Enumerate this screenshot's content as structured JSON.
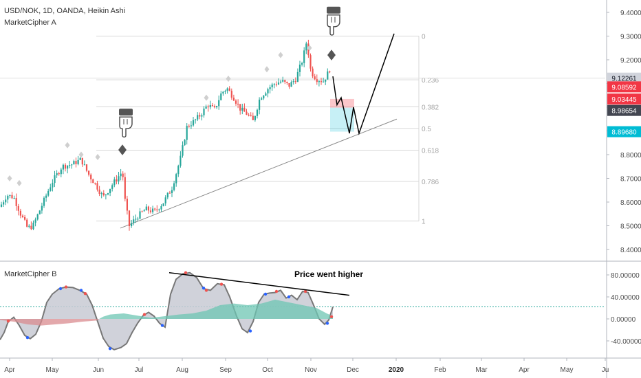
{
  "header": {
    "symbol_line": "USD/NOK, 1D, OANDA, Heikin Ashi",
    "indicator_a": "MarketCipher A",
    "indicator_b": "MarketCipher B"
  },
  "annotation": {
    "text": "Price went higher"
  },
  "colors": {
    "up": "#26a69a",
    "down": "#ef5350",
    "diamond": "#555555",
    "tag_gray": "#d1d4dc",
    "tag_red": "#f23645",
    "tag_dark": "#434651",
    "tag_teal": "#00bcd4",
    "fib_line": "#d7d7d7",
    "trend_line": "#888888",
    "projection": "#000000",
    "wave_gray": "#c8cad3",
    "wave_edge": "#777777",
    "teal_fill": "#6ec5b3",
    "red_fill": "#d98b8f"
  },
  "chart_data": [
    {
      "type": "candlestick",
      "title": "USD/NOK, 1D, OANDA, Heikin Ashi",
      "ylim": [
        8.35,
        9.45
      ],
      "y_ticks": [
        "9.40000",
        "9.30000",
        "9.20000",
        "9.10000",
        "9.00000",
        "8.90000",
        "8.80000",
        "8.70000",
        "8.60000",
        "8.50000",
        "8.40000"
      ],
      "x_ticks": [
        "Apr",
        "May",
        "Jun",
        "Jul",
        "Aug",
        "Sep",
        "Oct",
        "Nov",
        "Dec",
        "2020",
        "Feb",
        "Mar",
        "Apr",
        "May",
        "Ju"
      ],
      "price_path": [
        [
          0,
          8.58
        ],
        [
          10,
          8.63
        ],
        [
          20,
          8.62
        ],
        [
          30,
          8.55
        ],
        [
          40,
          8.49
        ],
        [
          48,
          8.5
        ],
        [
          60,
          8.58
        ],
        [
          75,
          8.68
        ],
        [
          90,
          8.75
        ],
        [
          105,
          8.76
        ],
        [
          118,
          8.78
        ],
        [
          128,
          8.72
        ],
        [
          140,
          8.67
        ],
        [
          150,
          8.62
        ],
        [
          160,
          8.66
        ],
        [
          170,
          8.7
        ],
        [
          178,
          8.73
        ],
        [
          182,
          8.6
        ],
        [
          188,
          8.5
        ],
        [
          200,
          8.54
        ],
        [
          212,
          8.57
        ],
        [
          225,
          8.56
        ],
        [
          238,
          8.6
        ],
        [
          250,
          8.66
        ],
        [
          262,
          8.78
        ],
        [
          272,
          8.92
        ],
        [
          282,
          8.94
        ],
        [
          292,
          8.97
        ],
        [
          302,
          9.01
        ],
        [
          312,
          8.99
        ],
        [
          322,
          9.06
        ],
        [
          330,
          9.08
        ],
        [
          340,
          9.04
        ],
        [
          350,
          8.99
        ],
        [
          360,
          8.97
        ],
        [
          368,
          8.94
        ],
        [
          378,
          9.04
        ],
        [
          390,
          9.08
        ],
        [
          400,
          9.1
        ],
        [
          410,
          9.11
        ],
        [
          420,
          9.09
        ],
        [
          430,
          9.12
        ],
        [
          440,
          9.2
        ],
        [
          446,
          9.28
        ],
        [
          452,
          9.15
        ],
        [
          460,
          9.12
        ],
        [
          470,
          9.11
        ],
        [
          478,
          9.15
        ],
        [
          484,
          9.2
        ]
      ],
      "diamonds": [
        {
          "x": 178,
          "price": 8.82,
          "large": true
        },
        {
          "x": 482,
          "price": 9.22,
          "large": true
        },
        {
          "x": 98,
          "price": 8.84
        },
        {
          "x": 118,
          "price": 8.8
        },
        {
          "x": 142,
          "price": 8.79
        },
        {
          "x": 28,
          "price": 8.68
        },
        {
          "x": 14,
          "price": 8.7
        },
        {
          "x": 300,
          "price": 9.04
        },
        {
          "x": 332,
          "price": 9.12
        },
        {
          "x": 388,
          "price": 9.16
        },
        {
          "x": 408,
          "price": 9.22
        },
        {
          "x": 450,
          "price": 9.25
        }
      ],
      "pointer_icons": [
        {
          "x": 182,
          "price": 8.93
        },
        {
          "x": 484,
          "price": 9.36
        }
      ],
      "fib_levels": [
        {
          "label": "0",
          "price": 9.3
        },
        {
          "label": "0.236",
          "price": 9.1156
        },
        {
          "label": "0.382",
          "price": 9.0017
        },
        {
          "label": "0.5",
          "price": 8.91
        },
        {
          "label": "0.618",
          "price": 8.8183
        },
        {
          "label": "0.786",
          "price": 8.6873
        },
        {
          "label": "1",
          "price": 8.52
        }
      ],
      "trend_line": [
        [
          175,
          8.49
        ],
        [
          577,
          8.95
        ]
      ],
      "projection": [
        [
          484,
          9.13
        ],
        [
          490,
          9.01
        ],
        [
          496,
          9.04
        ],
        [
          508,
          8.89
        ],
        [
          514,
          9.0
        ],
        [
          522,
          8.89
        ],
        [
          573,
          9.31
        ]
      ],
      "zones": [
        {
          "kind": "stop",
          "x0": 480,
          "x1": 515,
          "top": 9.035,
          "bottom": 8.998
        },
        {
          "kind": "target",
          "x0": 480,
          "x1": 515,
          "top": 8.998,
          "bottom": 8.897
        }
      ],
      "price_tags": [
        {
          "value": "9.12261",
          "price": 9.1226,
          "color": "tag_gray"
        },
        {
          "value": "9.08592",
          "price": 9.0859,
          "color": "tag_red"
        },
        {
          "value": "9.03445",
          "price": 9.0345,
          "color": "tag_red"
        },
        {
          "value": "8.98654",
          "price": 8.9865,
          "color": "tag_dark"
        },
        {
          "value": "8.89680",
          "price": 8.8968,
          "color": "tag_teal"
        }
      ]
    },
    {
      "type": "area",
      "title": "MarketCipher B",
      "ylim": [
        -70,
        92
      ],
      "y_ticks": [
        "80.00000",
        "40.00000",
        "0.00000",
        "-40.00000"
      ],
      "dotted_level": 22,
      "wave": [
        [
          0,
          -38
        ],
        [
          6,
          -25
        ],
        [
          12,
          -5
        ],
        [
          20,
          3
        ],
        [
          28,
          -12
        ],
        [
          36,
          -30
        ],
        [
          44,
          -36
        ],
        [
          52,
          -28
        ],
        [
          60,
          -5
        ],
        [
          68,
          30
        ],
        [
          76,
          45
        ],
        [
          86,
          55
        ],
        [
          96,
          58
        ],
        [
          106,
          57
        ],
        [
          116,
          52
        ],
        [
          126,
          45
        ],
        [
          134,
          25
        ],
        [
          142,
          -5
        ],
        [
          150,
          -35
        ],
        [
          158,
          -50
        ],
        [
          166,
          -56
        ],
        [
          176,
          -52
        ],
        [
          184,
          -45
        ],
        [
          192,
          -25
        ],
        [
          200,
          -8
        ],
        [
          208,
          6
        ],
        [
          216,
          12
        ],
        [
          224,
          5
        ],
        [
          232,
          -8
        ],
        [
          240,
          -15
        ],
        [
          248,
          45
        ],
        [
          256,
          72
        ],
        [
          266,
          82
        ],
        [
          276,
          84
        ],
        [
          286,
          75
        ],
        [
          296,
          55
        ],
        [
          306,
          52
        ],
        [
          316,
          64
        ],
        [
          326,
          62
        ],
        [
          334,
          40
        ],
        [
          344,
          5
        ],
        [
          352,
          -18
        ],
        [
          360,
          -25
        ],
        [
          368,
          -5
        ],
        [
          376,
          30
        ],
        [
          384,
          45
        ],
        [
          392,
          47
        ],
        [
          400,
          48
        ],
        [
          408,
          52
        ],
        [
          416,
          38
        ],
        [
          424,
          43
        ],
        [
          432,
          35
        ],
        [
          440,
          50
        ],
        [
          448,
          48
        ],
        [
          456,
          25
        ],
        [
          464,
          0
        ],
        [
          472,
          -10
        ],
        [
          478,
          -2
        ],
        [
          484,
          22
        ]
      ],
      "flow": [
        [
          0,
          -2
        ],
        [
          20,
          -5
        ],
        [
          40,
          -10
        ],
        [
          60,
          -12
        ],
        [
          80,
          -10
        ],
        [
          100,
          -8
        ],
        [
          120,
          -5
        ],
        [
          140,
          -3
        ],
        [
          150,
          4
        ],
        [
          160,
          8
        ],
        [
          180,
          10
        ],
        [
          200,
          6
        ],
        [
          220,
          2
        ],
        [
          240,
          5
        ],
        [
          260,
          8
        ],
        [
          280,
          10
        ],
        [
          300,
          15
        ],
        [
          320,
          25
        ],
        [
          340,
          28
        ],
        [
          360,
          25
        ],
        [
          380,
          28
        ],
        [
          400,
          35
        ],
        [
          420,
          30
        ],
        [
          440,
          25
        ],
        [
          460,
          20
        ],
        [
          475,
          10
        ],
        [
          484,
          5
        ]
      ],
      "dots": [
        {
          "x": 88,
          "value": 55,
          "color": "blue"
        },
        {
          "x": 96,
          "value": 58,
          "color": "red"
        },
        {
          "x": 118,
          "value": 52,
          "color": "blue"
        },
        {
          "x": 124,
          "value": 46,
          "color": "red"
        },
        {
          "x": 270,
          "value": 84,
          "color": "red"
        },
        {
          "x": 296,
          "value": 56,
          "color": "blue"
        },
        {
          "x": 300,
          "value": 52,
          "color": "red"
        },
        {
          "x": 322,
          "value": 63,
          "color": "red"
        },
        {
          "x": 386,
          "value": 45,
          "color": "blue"
        },
        {
          "x": 402,
          "value": 50,
          "color": "red"
        },
        {
          "x": 420,
          "value": 40,
          "color": "blue"
        },
        {
          "x": 444,
          "value": 50,
          "color": "red"
        },
        {
          "x": 40,
          "value": -34,
          "color": "blue"
        },
        {
          "x": 160,
          "value": -54,
          "color": "blue"
        },
        {
          "x": 236,
          "value": -12,
          "color": "blue"
        },
        {
          "x": 364,
          "value": -22,
          "color": "blue"
        },
        {
          "x": 476,
          "value": -8,
          "color": "blue"
        },
        {
          "x": 12,
          "value": -4,
          "color": "red"
        },
        {
          "x": 210,
          "value": 8,
          "color": "red"
        },
        {
          "x": 482,
          "value": 4,
          "color": "red"
        }
      ],
      "divergence_line": [
        [
          246,
          84
        ],
        [
          508,
          43
        ]
      ]
    }
  ]
}
